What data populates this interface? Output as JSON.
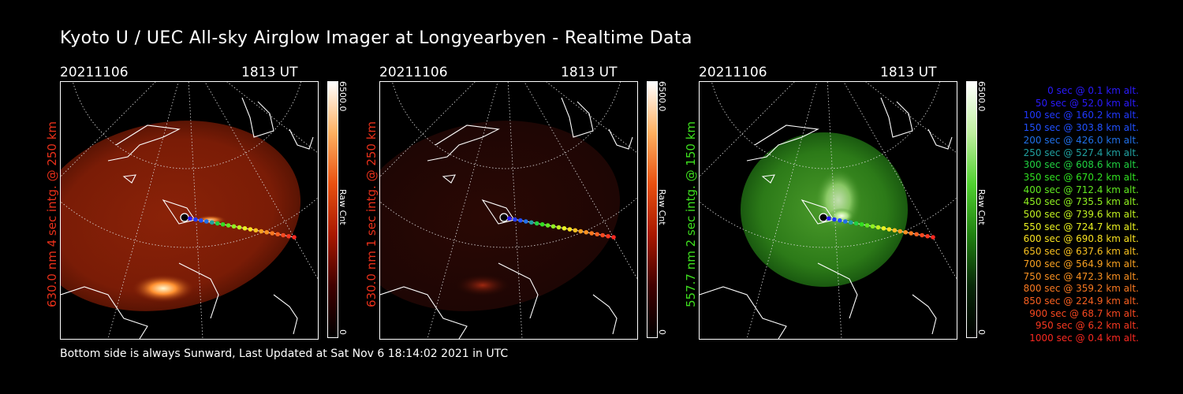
{
  "title": "Kyoto U / UEC All-sky Airglow Imager at Longyearbyen - Realtime Data",
  "footer": "Bottom side is always Sunward, Last Updated at Sat Nov  6 18:14:02 2021 in UTC",
  "colors": {
    "red": "#e8301a",
    "green": "#3ee01e",
    "white": "#ffffff"
  },
  "panels": [
    {
      "date": "20211106",
      "ut": "1813 UT",
      "side_label": "630.0 nm 4 sec intg. @ 250 km",
      "label_color": "#e8301a",
      "cbar_max": "6500.0",
      "cbar_unit": "Raw Cnt",
      "cbar_min": "0",
      "cbar_colors": [
        "#ffffff",
        "#ffb060",
        "#e85010",
        "#a81800",
        "#400000",
        "#000000"
      ]
    },
    {
      "date": "20211106",
      "ut": "1813 UT",
      "side_label": "630.0 nm 1 sec intg. @ 250 km",
      "label_color": "#e8301a",
      "cbar_max": "6500.0",
      "cbar_unit": "Raw Cnt",
      "cbar_min": "0",
      "cbar_colors": [
        "#ffffff",
        "#ffb060",
        "#e85010",
        "#a81800",
        "#400000",
        "#000000"
      ]
    },
    {
      "date": "20211106",
      "ut": "1813 UT",
      "side_label": "557.7 nm 2 sec intg. @ 150 km",
      "label_color": "#3ee01e",
      "cbar_max": "6500.0",
      "cbar_unit": "Raw Cnt",
      "cbar_min": "0",
      "cbar_colors": [
        "#ffffff",
        "#c0f0a0",
        "#50d030",
        "#208010",
        "#082808",
        "#000000"
      ]
    }
  ],
  "legend": [
    {
      "text": "0 sec @    0.1 km alt.",
      "color": "#2a1aff"
    },
    {
      "text": "50 sec @   52.0 km alt.",
      "color": "#2a1aff"
    },
    {
      "text": "100 sec @  160.2 km alt.",
      "color": "#2038ff"
    },
    {
      "text": "150 sec @  303.8 km alt.",
      "color": "#2050ff"
    },
    {
      "text": "200 sec @  426.0 km alt.",
      "color": "#2070e8"
    },
    {
      "text": "250 sec @  527.4 km alt.",
      "color": "#20a0a0"
    },
    {
      "text": "300 sec @  608.6 km alt.",
      "color": "#20d040"
    },
    {
      "text": "350 sec @  670.2 km alt.",
      "color": "#30e020"
    },
    {
      "text": "400 sec @  712.4 km alt.",
      "color": "#60e820"
    },
    {
      "text": "450 sec @  735.5 km alt.",
      "color": "#90f020"
    },
    {
      "text": "500 sec @  739.6 km alt.",
      "color": "#c0f020"
    },
    {
      "text": "550 sec @  724.7 km alt.",
      "color": "#e8f020"
    },
    {
      "text": "600 sec @  690.8 km alt.",
      "color": "#f8e020"
    },
    {
      "text": "650 sec @  637.6 km alt.",
      "color": "#f8c020"
    },
    {
      "text": "700 sec @  564.9 km alt.",
      "color": "#f8a020"
    },
    {
      "text": "750 sec @  472.3 km alt.",
      "color": "#f89020"
    },
    {
      "text": "800 sec @  359.2 km alt.",
      "color": "#f87820"
    },
    {
      "text": "850 sec @  224.9 km alt.",
      "color": "#f86020"
    },
    {
      "text": "900 sec @   68.7 km alt.",
      "color": "#f84820"
    },
    {
      "text": "950 sec @    6.2 km alt.",
      "color": "#f83820"
    },
    {
      "text": "1000 sec @    0.4 km alt.",
      "color": "#f82820"
    }
  ]
}
